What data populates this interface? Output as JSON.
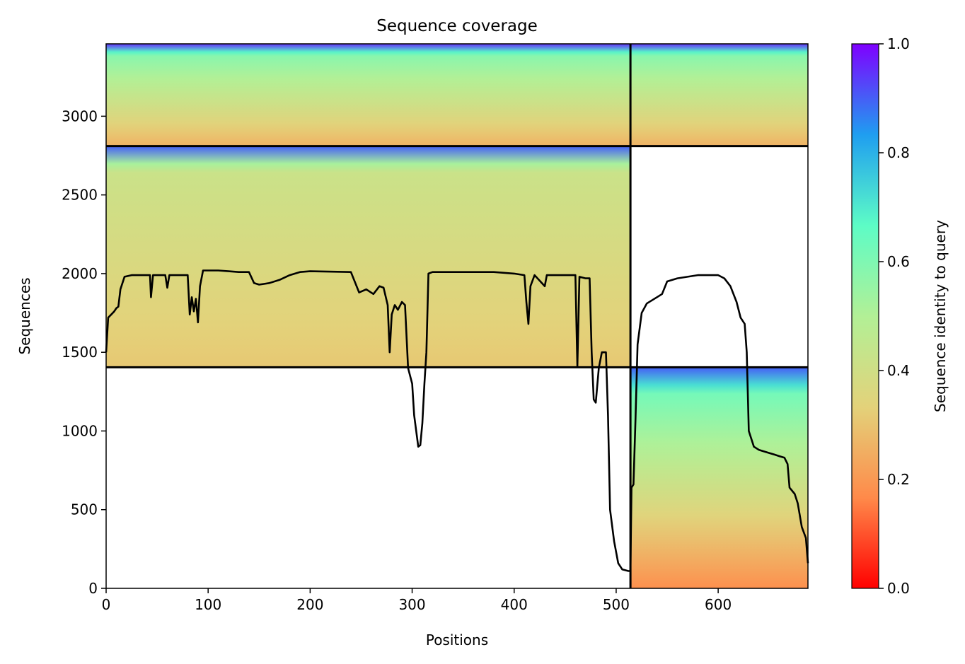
{
  "chart_data": {
    "type": "heatmap",
    "title": "Sequence coverage",
    "xlabel": "Positions",
    "ylabel": "Sequences",
    "xlim": [
      0,
      688
    ],
    "ylim": [
      0,
      3460
    ],
    "xticks": [
      0,
      100,
      200,
      300,
      400,
      500,
      600
    ],
    "yticks": [
      0,
      500,
      1000,
      1500,
      2000,
      2500,
      3000
    ],
    "colorbar": {
      "label": "Sequence identity to query",
      "range": [
        0.0,
        1.0
      ],
      "ticks": [
        0.0,
        0.2,
        0.4,
        0.6,
        0.8,
        1.0
      ],
      "colormap": "rainbow_r",
      "stops": [
        "#ff0000",
        "#ff8a4a",
        "#e3d27a",
        "#b2f096",
        "#5dfcc6",
        "#1f9ef0",
        "#7f00ff"
      ]
    },
    "block_dividers": {
      "x": [
        514
      ],
      "y": [
        1405,
        2810
      ]
    },
    "coverage_blocks": [
      {
        "x": [
          0,
          514
        ],
        "y": [
          1405,
          2810
        ],
        "identity_bottom": 0.31,
        "identity_top": 0.42,
        "top_band_identity": 0.9
      },
      {
        "x": [
          0,
          514
        ],
        "y": [
          2810,
          3460
        ],
        "identity_bottom": 0.26,
        "identity_top": 0.58,
        "top_band_identity": 0.95
      },
      {
        "x": [
          514,
          688
        ],
        "y": [
          2810,
          3460
        ],
        "identity_bottom": 0.26,
        "identity_top": 0.58,
        "top_band_identity": 0.95
      },
      {
        "x": [
          514,
          688
        ],
        "y": [
          0,
          1405
        ],
        "identity_bottom": 0.18,
        "identity_top": 0.62,
        "top_band_identity": 0.9
      }
    ],
    "series": [
      {
        "type": "line",
        "color": "#000000",
        "points": [
          [
            0,
            1500
          ],
          [
            2,
            1720
          ],
          [
            5,
            1740
          ],
          [
            8,
            1760
          ],
          [
            10,
            1780
          ],
          [
            12,
            1790
          ],
          [
            14,
            1900
          ],
          [
            18,
            1980
          ],
          [
            25,
            1990
          ],
          [
            35,
            1990
          ],
          [
            43,
            1990
          ],
          [
            44,
            1850
          ],
          [
            46,
            1990
          ],
          [
            58,
            1990
          ],
          [
            60,
            1910
          ],
          [
            62,
            1990
          ],
          [
            80,
            1990
          ],
          [
            82,
            1740
          ],
          [
            84,
            1850
          ],
          [
            86,
            1760
          ],
          [
            88,
            1840
          ],
          [
            90,
            1690
          ],
          [
            92,
            1920
          ],
          [
            95,
            2020
          ],
          [
            110,
            2020
          ],
          [
            120,
            2015
          ],
          [
            130,
            2010
          ],
          [
            140,
            2010
          ],
          [
            145,
            1940
          ],
          [
            150,
            1930
          ],
          [
            160,
            1940
          ],
          [
            170,
            1960
          ],
          [
            180,
            1990
          ],
          [
            190,
            2010
          ],
          [
            200,
            2015
          ],
          [
            240,
            2010
          ],
          [
            248,
            1880
          ],
          [
            255,
            1900
          ],
          [
            262,
            1870
          ],
          [
            268,
            1920
          ],
          [
            272,
            1910
          ],
          [
            276,
            1800
          ],
          [
            278,
            1500
          ],
          [
            280,
            1740
          ],
          [
            283,
            1800
          ],
          [
            286,
            1770
          ],
          [
            290,
            1820
          ],
          [
            293,
            1800
          ],
          [
            296,
            1400
          ],
          [
            300,
            1300
          ],
          [
            302,
            1100
          ],
          [
            304,
            1000
          ],
          [
            306,
            900
          ],
          [
            308,
            910
          ],
          [
            310,
            1050
          ],
          [
            312,
            1300
          ],
          [
            314,
            1500
          ],
          [
            316,
            2000
          ],
          [
            320,
            2010
          ],
          [
            340,
            2010
          ],
          [
            360,
            2010
          ],
          [
            380,
            2010
          ],
          [
            400,
            2000
          ],
          [
            410,
            1990
          ],
          [
            412,
            1820
          ],
          [
            414,
            1680
          ],
          [
            416,
            1920
          ],
          [
            420,
            1990
          ],
          [
            430,
            1920
          ],
          [
            432,
            1990
          ],
          [
            450,
            1990
          ],
          [
            460,
            1990
          ],
          [
            462,
            1410
          ],
          [
            464,
            1980
          ],
          [
            470,
            1970
          ],
          [
            474,
            1970
          ],
          [
            476,
            1500
          ],
          [
            478,
            1200
          ],
          [
            480,
            1180
          ],
          [
            483,
            1400
          ],
          [
            486,
            1500
          ],
          [
            490,
            1500
          ],
          [
            492,
            1100
          ],
          [
            494,
            500
          ],
          [
            498,
            300
          ],
          [
            502,
            160
          ],
          [
            506,
            120
          ],
          [
            512,
            110
          ],
          [
            514,
            110
          ],
          [
            515,
            640
          ],
          [
            517,
            660
          ],
          [
            519,
            1080
          ],
          [
            521,
            1550
          ],
          [
            525,
            1750
          ],
          [
            530,
            1810
          ],
          [
            540,
            1850
          ],
          [
            545,
            1870
          ],
          [
            550,
            1950
          ],
          [
            560,
            1970
          ],
          [
            580,
            1990
          ],
          [
            600,
            1990
          ],
          [
            606,
            1970
          ],
          [
            612,
            1920
          ],
          [
            618,
            1820
          ],
          [
            622,
            1720
          ],
          [
            626,
            1680
          ],
          [
            628,
            1500
          ],
          [
            630,
            1000
          ],
          [
            635,
            900
          ],
          [
            640,
            880
          ],
          [
            650,
            860
          ],
          [
            655,
            850
          ],
          [
            660,
            840
          ],
          [
            665,
            830
          ],
          [
            668,
            790
          ],
          [
            670,
            640
          ],
          [
            675,
            600
          ],
          [
            678,
            540
          ],
          [
            682,
            390
          ],
          [
            686,
            320
          ],
          [
            688,
            160
          ]
        ]
      }
    ]
  }
}
